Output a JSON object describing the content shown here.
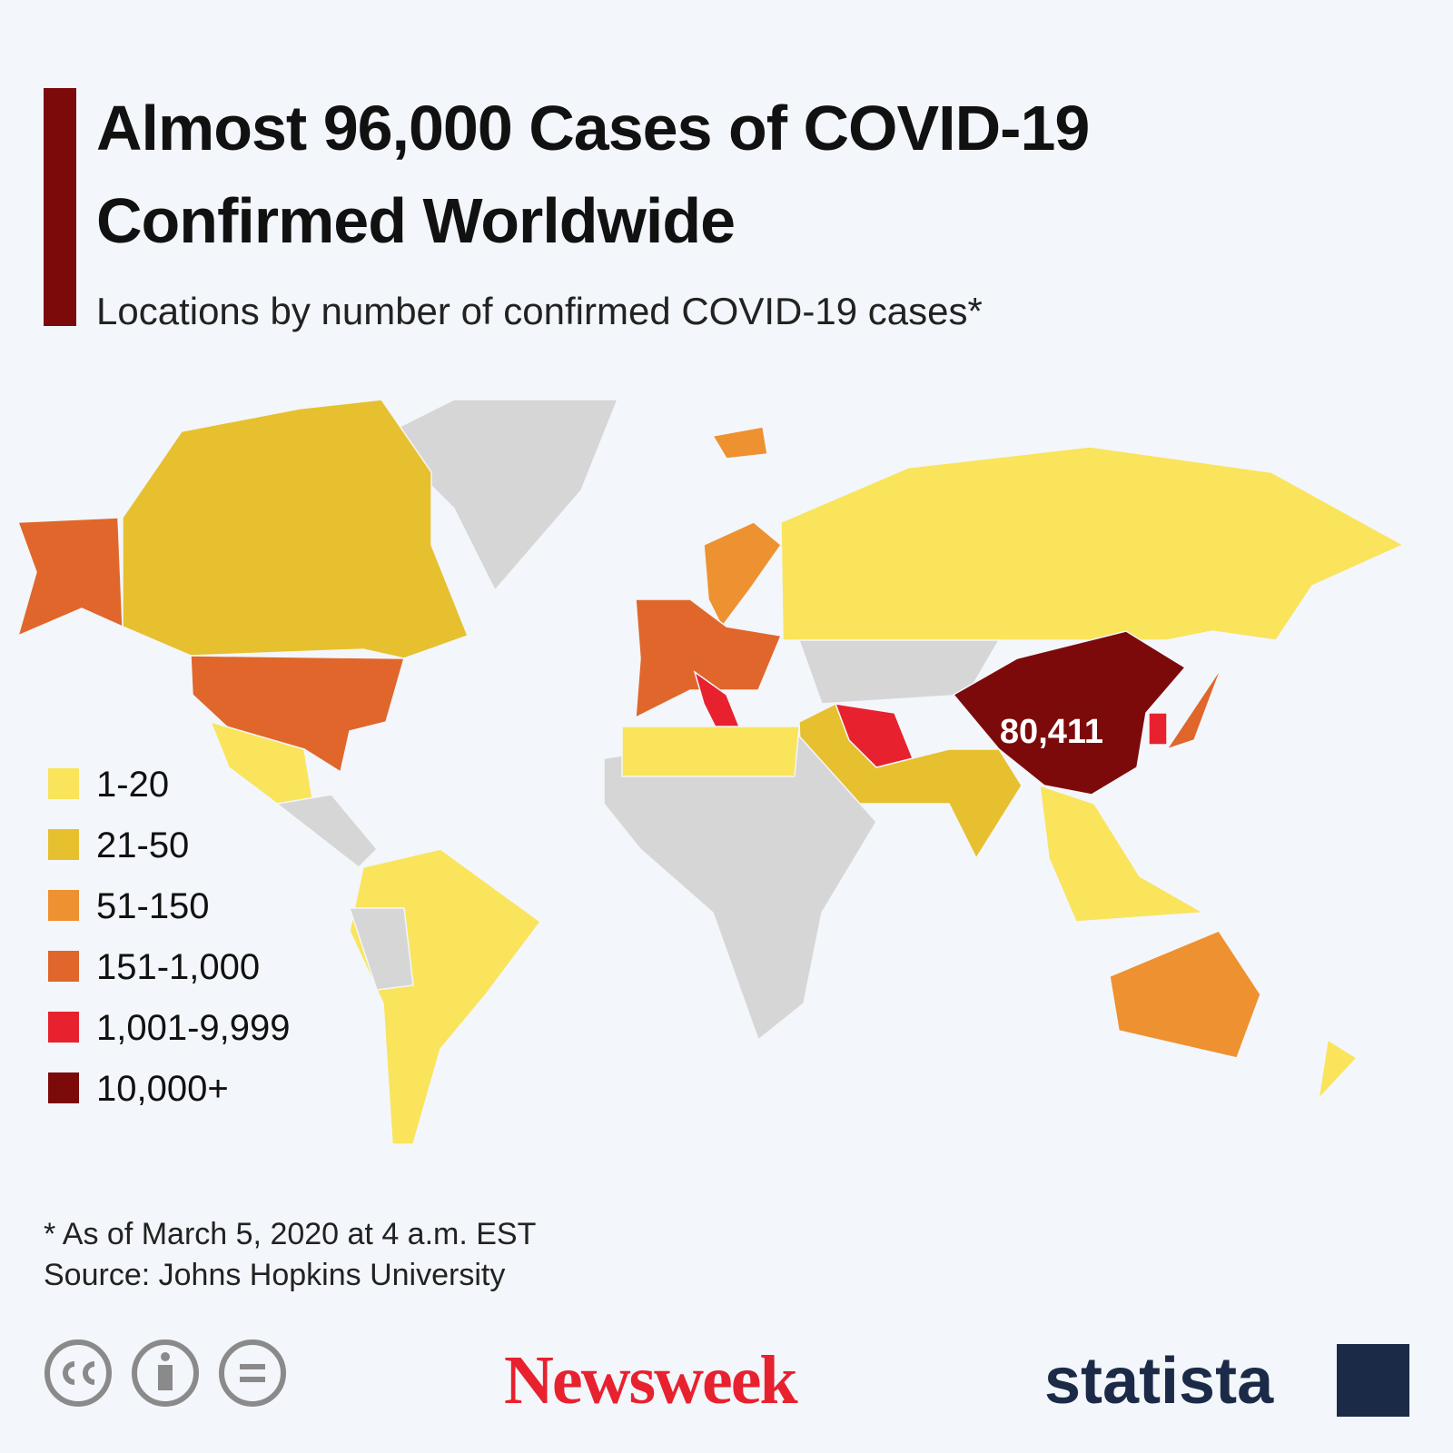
{
  "header": {
    "title_lines": [
      "Almost 96,000 Cases of COVID-19",
      "Confirmed Worldwide"
    ],
    "subtitle": "Locations by number of confirmed COVID-19 cases*"
  },
  "legend": [
    {
      "label": "1-20",
      "color": "#f9e45c"
    },
    {
      "label": "21-50",
      "color": "#e6c02e"
    },
    {
      "label": "51-150",
      "color": "#ee9130"
    },
    {
      "label": "151-1,000",
      "color": "#e0662b"
    },
    {
      "label": "1,001-9,999",
      "color": "#e8212e"
    },
    {
      "label": "10,000+",
      "color": "#7d0a0a"
    }
  ],
  "map": {
    "no_cases_color": "#d6d6d6",
    "callouts": [
      {
        "text": "80,411"
      }
    ]
  },
  "footer": {
    "notes": [
      "* As of March 5, 2020 at 4 a.m. EST",
      "Source: Johns Hopkins University"
    ],
    "logos": [
      "Newsweek",
      "statista"
    ]
  }
}
